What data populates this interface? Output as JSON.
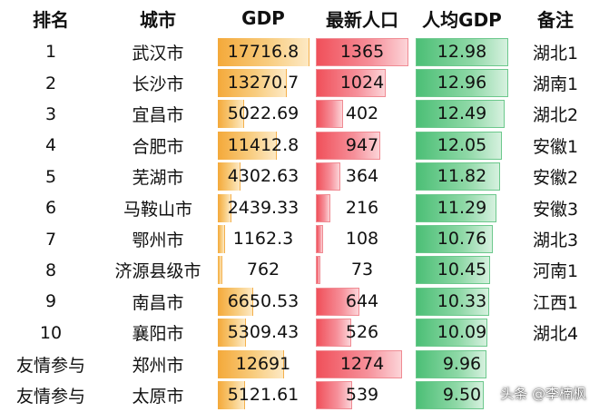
{
  "headers": [
    "排名",
    "城市",
    "GDP",
    "最新人口",
    "人均GDP",
    "备注"
  ],
  "rows": [
    {
      "rank": "1",
      "city": "武汉市",
      "gdp": "17716.8",
      "pop": "1365",
      "gpc": "12.98",
      "note": "湖北1"
    },
    {
      "rank": "2",
      "city": "长沙市",
      "gdp": "13270.7",
      "pop": "1024",
      "gpc": "12.96",
      "note": "湖南1"
    },
    {
      "rank": "3",
      "city": "宜昌市",
      "gdp": "5022.69",
      "pop": "402",
      "gpc": "12.49",
      "note": "湖北2"
    },
    {
      "rank": "4",
      "city": "合肥市",
      "gdp": "11412.8",
      "pop": "947",
      "gpc": "12.05",
      "note": "安徽1"
    },
    {
      "rank": "5",
      "city": "芜湖市",
      "gdp": "4302.63",
      "pop": "364",
      "gpc": "11.82",
      "note": "安徽2"
    },
    {
      "rank": "6",
      "city": "马鞍山市",
      "gdp": "2439.33",
      "pop": "216",
      "gpc": "11.29",
      "note": "安徽3"
    },
    {
      "rank": "7",
      "city": "鄂州市",
      "gdp": "1162.3",
      "pop": "108",
      "gpc": "10.76",
      "note": "湖北3"
    },
    {
      "rank": "8",
      "city": "济源县级市",
      "gdp": "762",
      "pop": "73",
      "gpc": "10.45",
      "note": "河南1"
    },
    {
      "rank": "9",
      "city": "南昌市",
      "gdp": "6650.53",
      "pop": "644",
      "gpc": "10.33",
      "note": "江西1"
    },
    {
      "rank": "10",
      "city": "襄阳市",
      "gdp": "5309.43",
      "pop": "526",
      "gpc": "10.09",
      "note": "湖北4"
    },
    {
      "rank": "友情参与",
      "city": "郑州市",
      "gdp": "12691",
      "pop": "1274",
      "gpc": "9.96",
      "note": ""
    },
    {
      "rank": "友情参与",
      "city": "太原市",
      "gdp": "5121.61",
      "pop": "539",
      "gpc": "9.50",
      "note": ""
    }
  ],
  "scales": {
    "gdp_max": 17716.8,
    "pop_max": 1365,
    "gpc_max": 12.98
  },
  "colors": {
    "gdp_bar": "#f4a93a",
    "pop_bar": "#f0505a",
    "gpc_bar": "#4cbf76"
  },
  "watermark": "头条 @李楠枫"
}
